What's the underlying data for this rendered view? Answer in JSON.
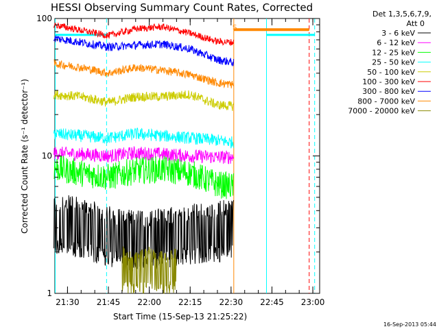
{
  "chart_data": {
    "type": "line",
    "title": "HESSI Observing Summary Count Rates, Corrected",
    "xlabel": "Start Time (15-Sep-13 21:25:22)",
    "ylabel": "Corrected Count Rate (s⁻¹ detector⁻¹)",
    "x_range": [
      "21:25:22",
      "23:02:30"
    ],
    "y_scale": "log",
    "ylim": [
      1,
      100
    ],
    "x_ticks": [
      "21:30",
      "21:45",
      "22:00",
      "22:15",
      "22:30",
      "22:45",
      "23:00"
    ],
    "y_ticks": [
      "1",
      "10",
      "100"
    ],
    "legend_header": [
      "Det 1,3,5,6,7,9,",
      "Att 0"
    ],
    "legend_position": "right",
    "footer_date": "16-Sep-2013 05:44",
    "annotation": "S",
    "series": [
      {
        "name": "3 - 6 keV",
        "color": "#000000",
        "x": [
          "21:25",
          "21:35",
          "21:45",
          "21:55",
          "22:05",
          "22:15",
          "22:25",
          "22:31"
        ],
        "values": [
          3.2,
          3.0,
          2.6,
          2.4,
          2.5,
          2.7,
          2.8,
          3.0
        ]
      },
      {
        "name": "6 - 12 keV",
        "color": "#ff00ff",
        "x": [
          "21:25",
          "21:35",
          "21:45",
          "21:55",
          "22:05",
          "22:15",
          "22:25",
          "22:31"
        ],
        "values": [
          10.5,
          10.3,
          10.0,
          10.5,
          10.3,
          10.0,
          9.8,
          9.8
        ]
      },
      {
        "name": "12 - 25 keV",
        "color": "#00ff00",
        "x": [
          "21:25",
          "21:35",
          "21:45",
          "21:55",
          "22:05",
          "22:15",
          "22:25",
          "22:31"
        ],
        "values": [
          8.2,
          7.5,
          7.0,
          7.8,
          8.0,
          7.5,
          6.2,
          6.0
        ]
      },
      {
        "name": "25 - 50 keV",
        "color": "#00ffff",
        "x": [
          "21:25",
          "21:35",
          "21:45",
          "21:55",
          "22:05",
          "22:15",
          "22:25",
          "22:31"
        ],
        "values": [
          14.5,
          14.0,
          13.5,
          14.5,
          14.0,
          13.5,
          13.0,
          12.5
        ]
      },
      {
        "name": "50 - 100 keV",
        "color": "#cccc00",
        "x": [
          "21:25",
          "21:35",
          "21:45",
          "21:55",
          "22:05",
          "22:15",
          "22:25",
          "22:31"
        ],
        "values": [
          28,
          27,
          24.5,
          27,
          27,
          28,
          23.5,
          23
        ]
      },
      {
        "name": "100 - 300 keV",
        "color": "#ff0000",
        "x": [
          "21:25",
          "21:35",
          "21:45",
          "21:55",
          "22:05",
          "22:15",
          "22:25",
          "22:31"
        ],
        "values": [
          90,
          82,
          75,
          84,
          87,
          78,
          68,
          67
        ]
      },
      {
        "name": "300 - 800 keV",
        "color": "#0000ff",
        "x": [
          "21:25",
          "21:35",
          "21:45",
          "21:55",
          "22:05",
          "22:15",
          "22:25",
          "22:31"
        ],
        "values": [
          72,
          67,
          62,
          64,
          65,
          60,
          50,
          48
        ]
      },
      {
        "name": "800 - 7000 keV",
        "color": "#ff8800",
        "x": [
          "21:25",
          "21:35",
          "21:45",
          "21:55",
          "22:05",
          "22:15",
          "22:25",
          "22:31"
        ],
        "values": [
          47,
          44,
          40,
          44,
          42,
          39,
          34,
          33
        ]
      },
      {
        "name": "7000 - 20000 keV",
        "color": "#888800",
        "x": [
          "21:50",
          "21:55",
          "22:00",
          "22:05",
          "22:10"
        ],
        "values": [
          1.5,
          1.4,
          1.5,
          1.4,
          1.5
        ]
      }
    ]
  }
}
